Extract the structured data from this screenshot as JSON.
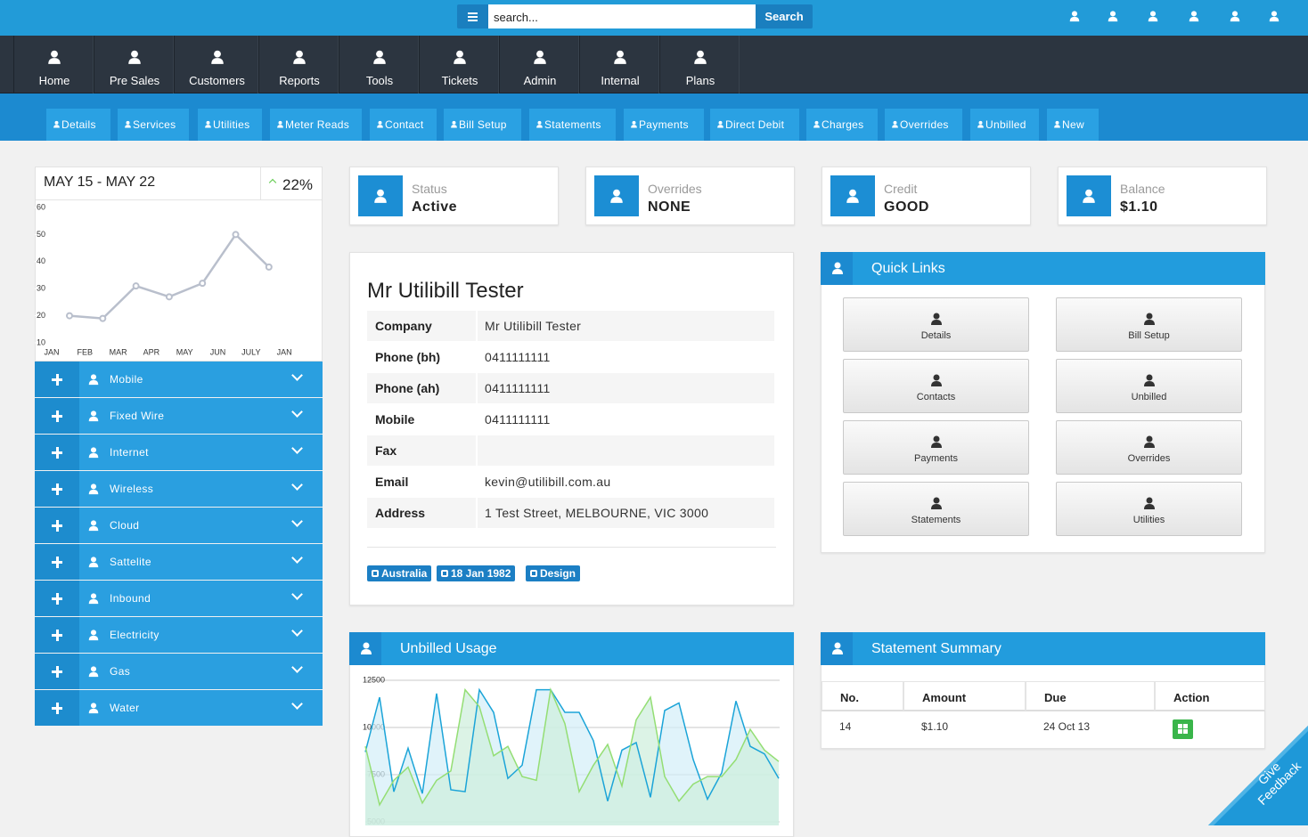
{
  "search": {
    "placeholder": "search...",
    "button": "Search"
  },
  "nav": [
    "Home",
    "Pre Sales",
    "Customers",
    "Reports",
    "Tools",
    "Tickets",
    "Admin",
    "Internal",
    "Plans"
  ],
  "tabs": [
    "Details",
    "Services",
    "Utilities",
    "Meter Reads",
    "Contact",
    "Bill Setup",
    "Statements",
    "Payments",
    "Direct Debit",
    "Charges",
    "Overrides",
    "Unbilled",
    "New"
  ],
  "trend": {
    "type": "line",
    "title": "MAY 15 - MAY 22",
    "change": "22%",
    "categories": [
      "JAN",
      "FEB",
      "MAR",
      "APR",
      "MAY",
      "JUN",
      "JULY",
      "JAN"
    ],
    "values": [
      20,
      19,
      31,
      27,
      32,
      50,
      38,
      null
    ],
    "ylim": [
      10,
      60
    ],
    "yticks": [
      10,
      20,
      30,
      40,
      50,
      60
    ],
    "color": "#b9bfcc"
  },
  "services": [
    "Mobile",
    "Fixed Wire",
    "Internet",
    "Wireless",
    "Cloud",
    "Sattelite",
    "Inbound",
    "Electricity",
    "Gas",
    "Water"
  ],
  "status_cards": [
    {
      "label": "Status",
      "value": "Active"
    },
    {
      "label": "Overrides",
      "value": "NONE"
    },
    {
      "label": "Credit",
      "value": "GOOD"
    },
    {
      "label": "Balance",
      "value": "$1.10"
    }
  ],
  "profile": {
    "name": "Mr Utilibill Tester",
    "rows": [
      {
        "label": "Company",
        "value": "Mr Utilibill Tester"
      },
      {
        "label": "Phone (bh)",
        "value": "0411111111"
      },
      {
        "label": "Phone (ah)",
        "value": "0411111111"
      },
      {
        "label": "Mobile",
        "value": "0411111111"
      },
      {
        "label": "Fax"
      },
      {
        "label": "Email",
        "value": "kevin@utilibill.com.au"
      },
      {
        "label": "Address",
        "value": "1 Test Street, MELBOURNE, VIC 3000"
      }
    ],
    "badges": [
      "Australia",
      "18 Jan 1982",
      "Design"
    ]
  },
  "quick_links": {
    "title": "Quick Links",
    "items": [
      "Details",
      "Bill Setup",
      "Contacts",
      "Unbilled",
      "Payments",
      "Overrides",
      "Statements",
      "Utilities"
    ]
  },
  "usage": {
    "type": "area",
    "title": "Unbilled Usage",
    "ylim": [
      5000,
      12500
    ],
    "yticks": [
      5000,
      7500,
      10000,
      12500
    ],
    "grid": true,
    "series": [
      {
        "color": "#1ba4d8",
        "fill": "#d3eef8",
        "values": [
          8700,
          11600,
          6600,
          8900,
          6500,
          11800,
          6700,
          6600,
          12000,
          10800,
          7300,
          8000,
          12000,
          12000,
          10800,
          10800,
          9300,
          6100,
          8800,
          9200,
          6300,
          10900,
          11300,
          8300,
          6200,
          7600,
          11400,
          9000,
          8600,
          7300
        ]
      },
      {
        "color": "#94de74",
        "fill": "#cdeedb",
        "values": [
          9000,
          5900,
          7200,
          7900,
          6000,
          7200,
          7700,
          12000,
          11100,
          8500,
          9000,
          7400,
          7200,
          12000,
          10200,
          6600,
          8000,
          9100,
          6900,
          10400,
          11600,
          7400,
          6100,
          7000,
          7400,
          7400,
          8300,
          9900,
          8800,
          8200
        ]
      }
    ]
  },
  "statements": {
    "title": "Statement Summary",
    "columns": [
      "No.",
      "Amount",
      "Due",
      "Action"
    ],
    "rows": [
      [
        "14",
        "$1.10",
        "24 Oct 13"
      ]
    ]
  },
  "feedback": "Give Feedback"
}
